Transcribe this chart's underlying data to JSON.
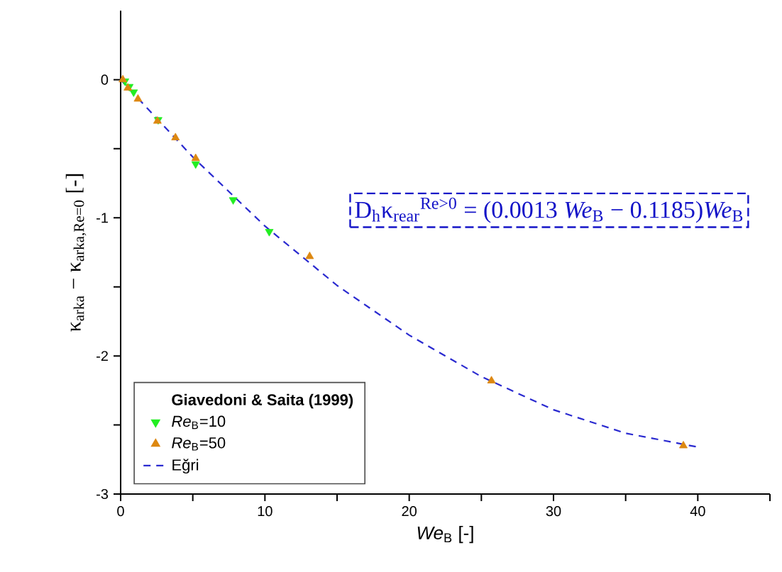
{
  "chart_data": {
    "type": "scatter",
    "xlabel": "*We*$_{B}$ [-]",
    "ylabel": "κ$_{arka}$ − κ$_{arka,Re=0}$ [-]",
    "legend_title": "Giavedoni & Saita (1999)",
    "legend": "bottom left",
    "grid": false,
    "xlim": [
      0,
      45
    ],
    "ylim": [
      -3,
      0.5
    ],
    "xticks": [
      0,
      {
        "value": 5,
        "label": null
      },
      10,
      {
        "value": 15,
        "label": null
      },
      20,
      {
        "value": 25,
        "label": null
      },
      30,
      {
        "value": 35,
        "label": null
      },
      40,
      {
        "value": 45,
        "label": null
      }
    ],
    "yticks": [
      -3,
      {
        "value": -2.5,
        "label": null
      },
      -2,
      {
        "value": -1.5,
        "label": null
      },
      -1,
      {
        "value": -0.5,
        "label": null
      },
      0
    ],
    "annotations": [
      "D$_{h}$κ$_{rear}$$^{Re>0}$ = (0.0013 *We*$_{B}$ − 0.1185)*We*$_{B}$"
    ],
    "series": [
      {
        "name": "*Re*$_{B}$=10",
        "marker": "triangle-down",
        "color": "#22ee22",
        "x": [
          0.3,
          0.6,
          0.9,
          2.6,
          5.2,
          7.8,
          10.3
        ],
        "values": [
          -0.01,
          -0.05,
          -0.09,
          -0.29,
          -0.61,
          -0.87,
          -1.1
        ]
      },
      {
        "name": "*Re*$_{B}$=50",
        "marker": "triangle",
        "color": "#dd8811",
        "x": [
          0.15,
          0.5,
          1.2,
          2.55,
          3.8,
          5.2,
          13.1,
          25.7,
          39
        ],
        "values": [
          0,
          -0.06,
          -0.14,
          -0.3,
          -0.42,
          -0.57,
          -1.28,
          -2.18,
          -2.65
        ]
      },
      {
        "name": "Eğri",
        "type": "line",
        "marker": "none",
        "line_style": "dashed",
        "color": "#2a2ad0",
        "x": [
          0,
          5,
          10,
          15,
          20,
          25,
          30,
          35,
          40
        ],
        "values": [
          0,
          -0.56,
          -1.06,
          -1.49,
          -1.85,
          -2.15,
          -2.39,
          -2.56,
          -2.66
        ]
      }
    ]
  }
}
